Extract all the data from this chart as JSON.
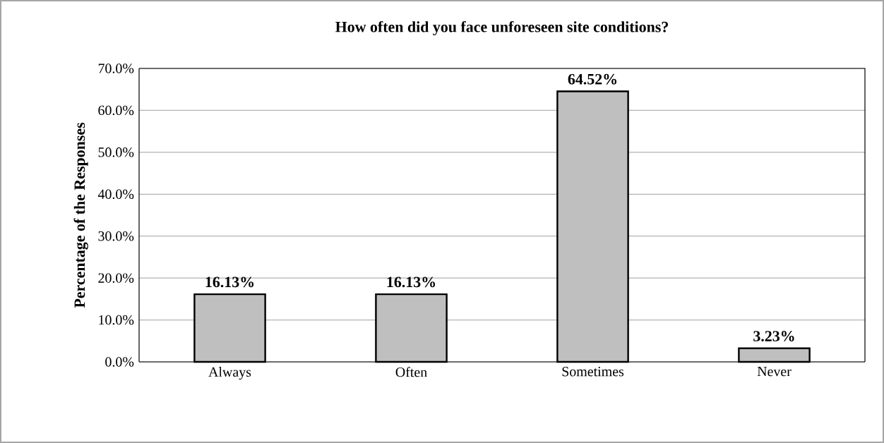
{
  "chart_data": {
    "type": "bar",
    "title": "How often did you face unforeseen site conditions?",
    "ylabel": "Percentage of the Responses",
    "categories": [
      "Always",
      "Often",
      "Sometimes",
      "Never"
    ],
    "values": [
      16.13,
      16.13,
      64.52,
      3.23
    ],
    "value_labels": [
      "16.13%",
      "16.13%",
      "64.52%",
      "3.23%"
    ],
    "color": "#bfbfbf",
    "ylim": [
      0,
      70
    ],
    "yticks": [
      {
        "value": 0,
        "label": "0.0%"
      },
      {
        "value": 10,
        "label": "10.0%"
      },
      {
        "value": 20,
        "label": "20.0%"
      },
      {
        "value": 30,
        "label": "30.0%"
      },
      {
        "value": 40,
        "label": "40.0%"
      },
      {
        "value": 50,
        "label": "50.0%"
      },
      {
        "value": 60,
        "label": "60.0%"
      },
      {
        "value": 70,
        "label": "70.0%"
      }
    ],
    "grid": "y"
  }
}
